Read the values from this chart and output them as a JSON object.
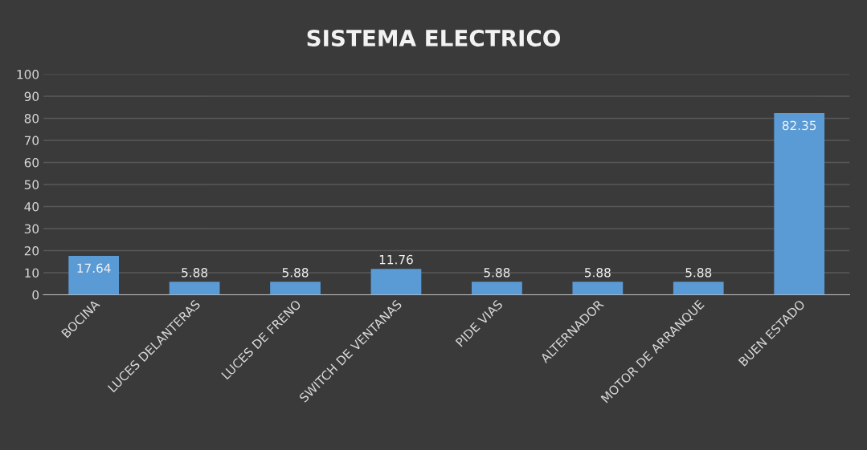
{
  "chart_data": {
    "type": "bar",
    "title": "SISTEMA ELECTRICO",
    "categories": [
      "BOCINA",
      "LUCES DELANTERAS",
      "LUCES DE FRENO",
      "SWITCH DE VENTANAS",
      "PIDE VIAS",
      "ALTERNADOR",
      "MOTOR DE ARRANQUE",
      "BUEN ESTADO"
    ],
    "values": [
      17.64,
      5.88,
      5.88,
      11.76,
      5.88,
      5.88,
      5.88,
      82.35
    ],
    "color": "#5b9bd5",
    "ylim": [
      0,
      100
    ],
    "yticks": [
      0,
      10,
      20,
      30,
      40,
      50,
      60,
      70,
      80,
      90,
      100
    ],
    "grid": "y",
    "data_labels": true
  }
}
